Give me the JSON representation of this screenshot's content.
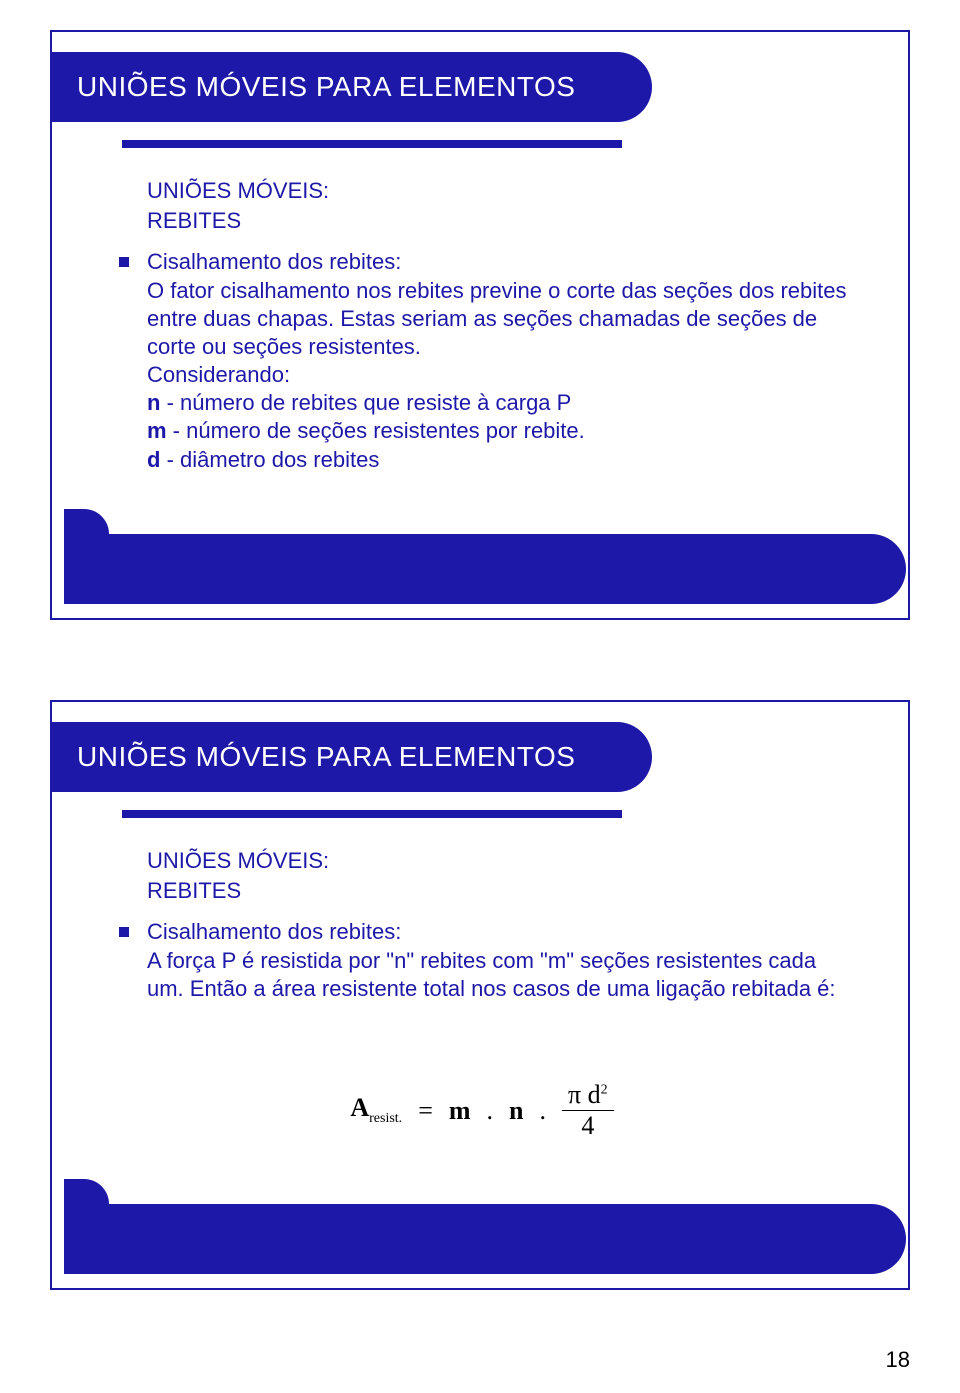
{
  "slides": [
    {
      "title": "UNIÕES MÓVEIS PARA ELEMENTOS",
      "subtitle1": "UNIÕES MÓVEIS:",
      "subtitle2": "REBITES",
      "heading": "Cisalhamento dos rebites:",
      "paragraph": "O fator cisalhamento nos rebites previne o corte das seções dos rebites entre duas chapas. Estas seriam as seções chamadas de seções de corte ou seções resistentes.",
      "considering": "Considerando:",
      "line_n_bold": "n",
      "line_n_rest": " - número de rebites que resiste à carga P",
      "line_m_bold": "m",
      "line_m_rest": " - número de seções resistentes por rebite.",
      "line_d_bold": "d",
      "line_d_rest": " - diâmetro dos rebites"
    },
    {
      "title": "UNIÕES MÓVEIS PARA ELEMENTOS",
      "subtitle1": "UNIÕES MÓVEIS:",
      "subtitle2": "REBITES",
      "heading": "Cisalhamento dos rebites:",
      "paragraph": "A força P é resistida por \"n\" rebites com \"m\" seções resistentes cada um. Então a área resistente total nos casos de uma ligação rebitada é:",
      "formula_left": "A",
      "formula_sub": "resist.",
      "formula_eq": "=",
      "formula_m": "m",
      "formula_dot1": ".",
      "formula_n": "n",
      "formula_dot2": ".",
      "formula_num": "π d",
      "formula_exp": "2",
      "formula_den": "4"
    }
  ],
  "page_number": "18",
  "colors": {
    "primary": "#1e18a8",
    "white": "#ffffff",
    "black": "#000000"
  }
}
